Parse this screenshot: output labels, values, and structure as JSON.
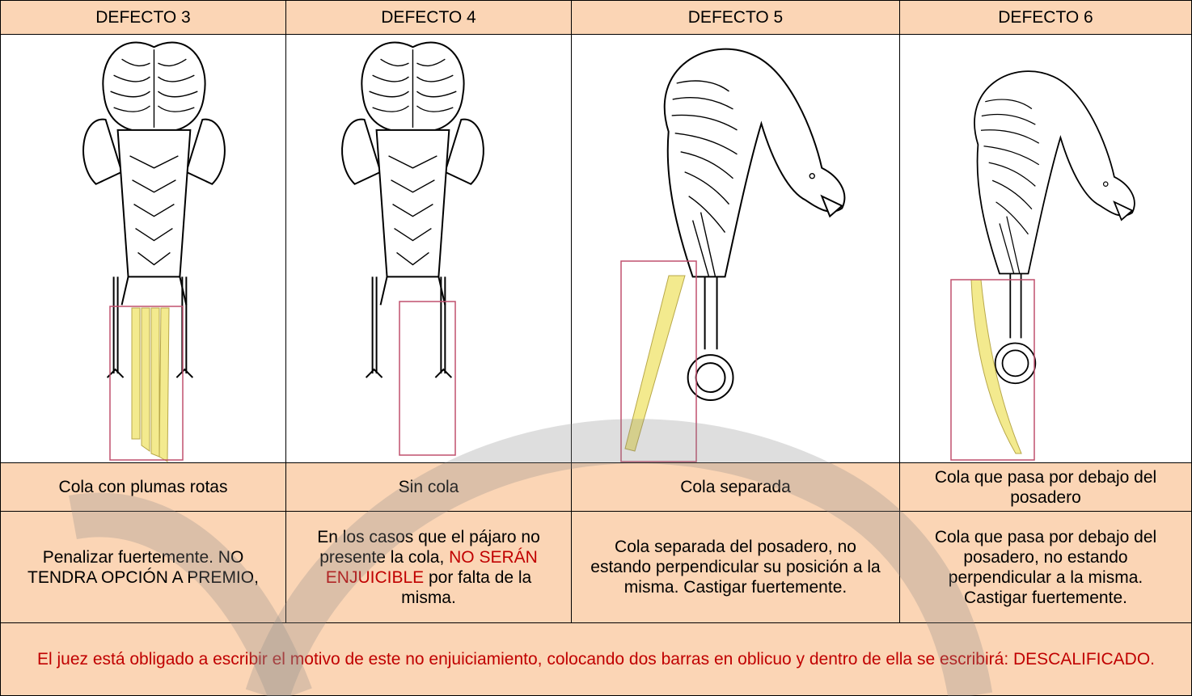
{
  "table": {
    "headers": [
      "DEFECTO 3",
      "DEFECTO 4",
      "DEFECTO 5",
      "DEFECTO 6"
    ],
    "names": [
      "Cola con plumas rotas",
      "Sin cola",
      "Cola separada",
      "Cola que pasa por debajo del posadero"
    ],
    "descriptions": [
      [
        {
          "text": "Penalizar fuertemente. NO TENDRA OPCIÓN A PREMIO,"
        }
      ],
      [
        {
          "text": "En los casos que el pájaro no presente la cola, "
        },
        {
          "text": "NO SERÁN ENJUICIBLE",
          "color": "#c00000"
        },
        {
          "text": " por falta de la misma."
        }
      ],
      [
        {
          "text": "Cola separada del posadero, no estando perpendicular su posición a la misma. Castigar fuertemente."
        }
      ],
      [
        {
          "text": "Cola que pasa por debajo del posadero, no estando perpendicular a la misma. Castigar fuertemente."
        }
      ]
    ],
    "footer": {
      "text": "El juez está obligado a escribir el motivo de este no enjuiciamiento, colocando dos barras en oblicuo y dentro de ella se escribirá: DESCALIFICADO.",
      "color": "#c00000"
    }
  }
}
